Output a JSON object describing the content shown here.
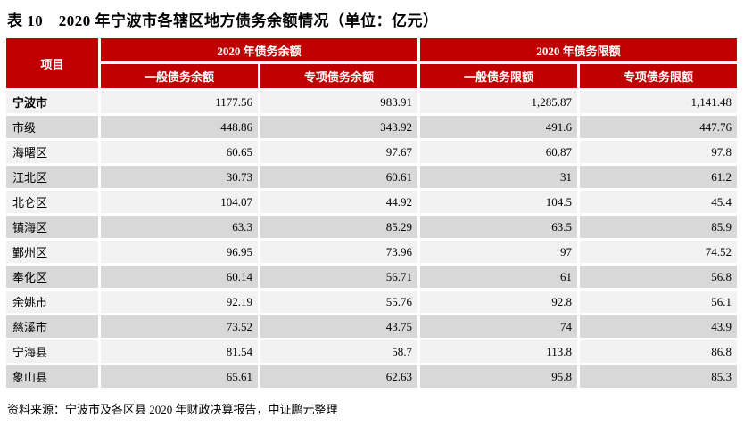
{
  "title": "表 10　2020 年宁波市各辖区地方债务余额情况（单位：亿元）",
  "table": {
    "corner_header": "项目",
    "group_headers": [
      "2020 年债务余额",
      "2020 年债务限额"
    ],
    "sub_headers": [
      "一般债务余额",
      "专项债务余额",
      "一般债务限额",
      "专项债务限额"
    ],
    "rows": [
      {
        "label": "宁波市",
        "bold": true,
        "values": [
          "1177.56",
          "983.91",
          "1,285.87",
          "1,141.48"
        ]
      },
      {
        "label": "市级",
        "bold": false,
        "values": [
          "448.86",
          "343.92",
          "491.6",
          "447.76"
        ]
      },
      {
        "label": "海曙区",
        "bold": false,
        "values": [
          "60.65",
          "97.67",
          "60.87",
          "97.8"
        ]
      },
      {
        "label": "江北区",
        "bold": false,
        "values": [
          "30.73",
          "60.61",
          "31",
          "61.2"
        ]
      },
      {
        "label": "北仑区",
        "bold": false,
        "values": [
          "104.07",
          "44.92",
          "104.5",
          "45.4"
        ]
      },
      {
        "label": "镇海区",
        "bold": false,
        "values": [
          "63.3",
          "85.29",
          "63.5",
          "85.9"
        ]
      },
      {
        "label": "鄞州区",
        "bold": false,
        "values": [
          "96.95",
          "73.96",
          "97",
          "74.52"
        ]
      },
      {
        "label": "奉化区",
        "bold": false,
        "values": [
          "60.14",
          "56.71",
          "61",
          "56.8"
        ]
      },
      {
        "label": "余姚市",
        "bold": false,
        "values": [
          "92.19",
          "55.76",
          "92.8",
          "56.1"
        ]
      },
      {
        "label": "慈溪市",
        "bold": false,
        "values": [
          "73.52",
          "43.75",
          "74",
          "43.9"
        ]
      },
      {
        "label": "宁海县",
        "bold": false,
        "values": [
          "81.54",
          "58.7",
          "113.8",
          "86.8"
        ]
      },
      {
        "label": "象山县",
        "bold": false,
        "values": [
          "65.61",
          "62.63",
          "95.8",
          "85.3"
        ]
      }
    ]
  },
  "source_note": "资料来源：宁波市及各区县 2020 年财政决算报告，中证鹏元整理",
  "colors": {
    "header_red": "#C00000",
    "header_text": "#FFFFFF",
    "row_light": "#F2F2F2",
    "row_dark": "#D8D8D8"
  }
}
